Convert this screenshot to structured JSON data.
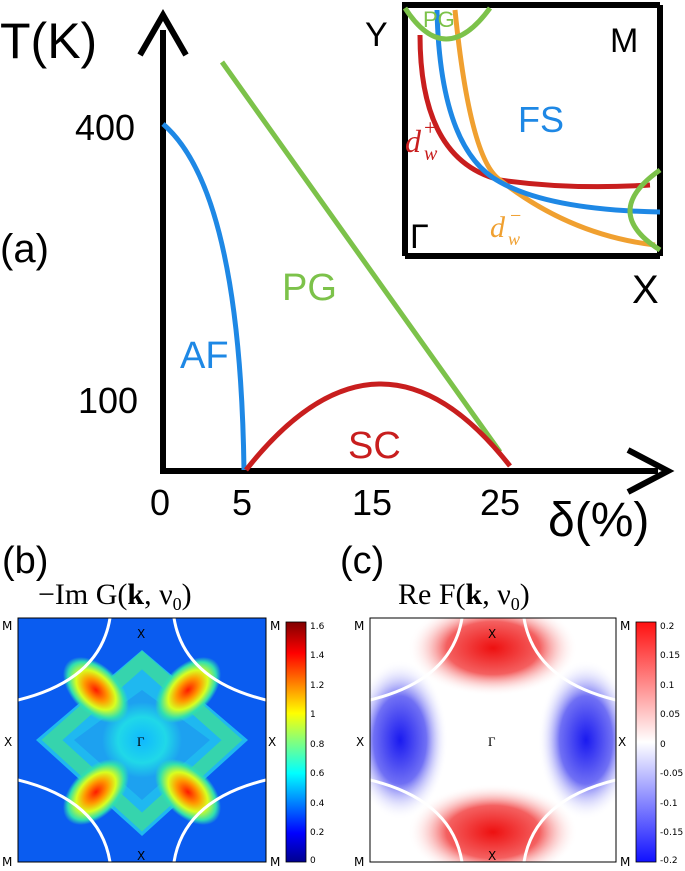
{
  "phase_diagram": {
    "panel_label": "(a)",
    "y_axis_label": "T(K)",
    "x_axis_label": "δ(%)",
    "y_ticks": [
      "400",
      "100"
    ],
    "x_ticks": [
      "0",
      "5",
      "15",
      "25"
    ],
    "regions": {
      "af": "AF",
      "pg": "PG",
      "sc": "SC"
    },
    "colors": {
      "af": "#1e88e5",
      "pg": "#7cc24a",
      "sc": "#c81e1e",
      "fs_alt": "#f0a030"
    }
  },
  "inset": {
    "corners": {
      "y": "Y",
      "m": "M",
      "gamma": "Γ",
      "x": "X"
    },
    "pg": "PG",
    "fs": "FS",
    "dw_plus": "d",
    "dw_plus_sub": "w",
    "dw_plus_sup": "+",
    "dw_minus": "d",
    "dw_minus_sub": "w",
    "dw_minus_sup": "−"
  },
  "panel_b": {
    "label": "(b)",
    "title_prefix": "−Im G(",
    "title_k": "k",
    "title_suffix": ", ν",
    "title_sub": "0",
    "title_end": ")",
    "corners": [
      "M",
      "M",
      "M",
      "M"
    ],
    "x_labels": [
      "X",
      "X",
      "X",
      "X"
    ],
    "center": "Γ",
    "colorbar_ticks": [
      "1.6",
      "1.4",
      "1.2",
      "1",
      "0.8",
      "0.6",
      "0.4",
      "0.2",
      "0"
    ]
  },
  "panel_c": {
    "label": "(c)",
    "title_prefix": "Re F(",
    "title_k": "k",
    "title_suffix": ", ν",
    "title_sub": "0",
    "title_end": ")",
    "corners": [
      "M",
      "M",
      "M",
      "M"
    ],
    "x_labels": [
      "X",
      "X",
      "X",
      "X"
    ],
    "center": "Γ",
    "colorbar_ticks": [
      "0.2",
      "0.15",
      "0.1",
      "0.05",
      "0",
      "-0.05",
      "-0.1",
      "-0.15",
      "-0.2"
    ]
  }
}
